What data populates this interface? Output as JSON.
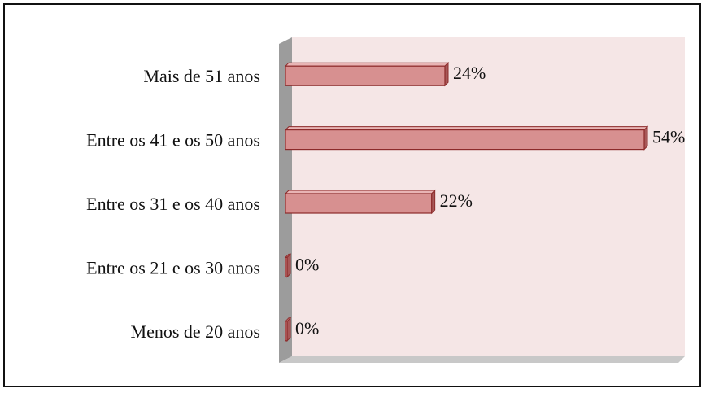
{
  "chart_data": {
    "type": "bar",
    "orientation": "horizontal",
    "categories": [
      "Mais de 51 anos",
      "Entre os 41 e os 50 anos",
      "Entre os 31 e os 40 anos",
      "Entre os 21 e os 30 anos",
      "Menos de 20 anos"
    ],
    "values": [
      24,
      54,
      22,
      0,
      0
    ],
    "data_labels": [
      "24%",
      "54%",
      "22%",
      "0%",
      "0%"
    ],
    "unit": "%",
    "xlim": [
      0,
      60
    ],
    "grid": false,
    "legend": "none",
    "style": "3d",
    "colors": {
      "bar_front": "#d79090",
      "bar_top": "#e8b4b4",
      "bar_side": "#a85858",
      "bar_stroke": "#8c2a2a",
      "plot_bg": "#f5e6e6",
      "wall": "#9c9c9c",
      "floor": "#c8c8c8"
    }
  }
}
